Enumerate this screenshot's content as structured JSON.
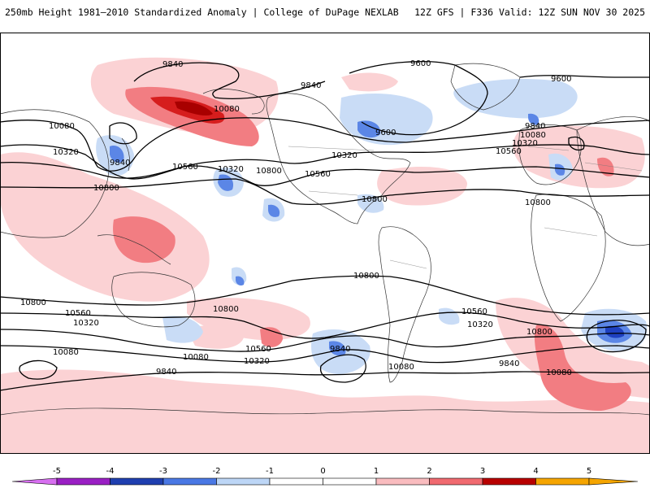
{
  "header": {
    "title": "250mb Height 1981–2010 Standardized Anomaly | College of DuPage NEXLAB",
    "run_info": "12Z GFS | F336 Valid: 12Z SUN NOV 30 2025"
  },
  "map": {
    "contour_labels": {
      "l9840_a": "9840",
      "l9840_b": "9840",
      "l9840_c": "9840",
      "l9840_d": "9840",
      "l9840_e": "9840",
      "l9840_f": "9840",
      "l9600_a": "9600",
      "l9600_b": "9600",
      "l9600_c": "9600",
      "l10080_a": "10080",
      "l10080_b": "10080",
      "l10080_c": "10080",
      "l10080_d": "10080",
      "l10080_e": "10080",
      "l10080_f": "10080",
      "l10080_g": "10080",
      "l10320_a": "10320",
      "l10320_b": "10320",
      "l10320_c": "10320",
      "l10320_d": "10320",
      "l10320_e": "10320",
      "l10320_f": "10320",
      "l10320_g": "10320",
      "l10560_a": "10560",
      "l10560_b": "10560",
      "l10560_c": "10560",
      "l10560_d": "10560",
      "l10560_e": "10560",
      "l10560_f": "10560",
      "l10800_a": "10800",
      "l10800_b": "10800",
      "l10800_c": "10800",
      "l10800_d": "10800",
      "l10800_e": "10800",
      "l10800_f": "10800",
      "l10800_g": "10800",
      "l10800_h": "10800"
    }
  },
  "colorbar": {
    "ticks": [
      "-5",
      "-4",
      "-3",
      "-2",
      "-1",
      "0",
      "1",
      "2",
      "3",
      "4",
      "5"
    ],
    "colors": [
      "#d76ff0",
      "#9a1fc4",
      "#1f3fb0",
      "#4a78e4",
      "#bdd6f6",
      "#ffffff",
      "#ffffff",
      "#f9bcbf",
      "#f06a70",
      "#b80000",
      "#f5a500"
    ]
  },
  "colors": {
    "anom_neg1": "#c9dcf6",
    "anom_neg2": "#5b86e6",
    "anom_neg3": "#1e40c0",
    "anom_pos1": "#fbd2d4",
    "anom_pos2": "#f27d82",
    "anom_pos3": "#d61d1d",
    "anom_pos4": "#a80000"
  }
}
